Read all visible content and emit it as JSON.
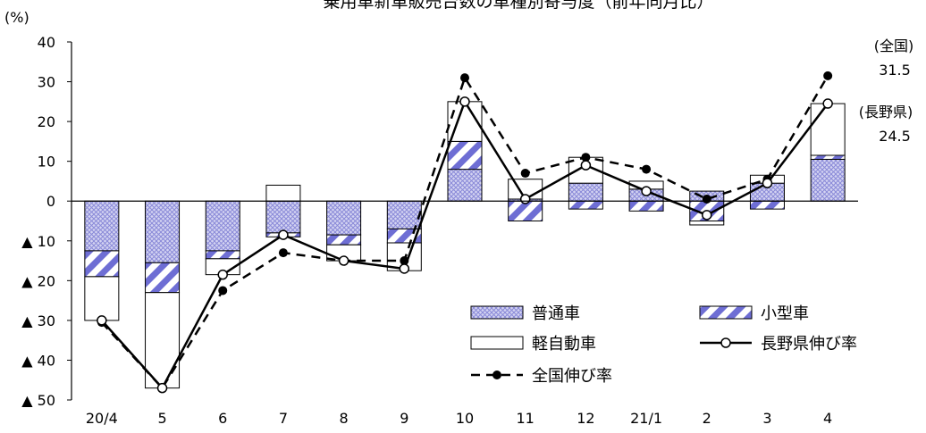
{
  "chart_data": {
    "type": "bar",
    "title": "乗用車新車販売台数の車種別寄与度（前年同月比）",
    "ylabel": "(%)",
    "ylim": [
      -50,
      40
    ],
    "yticks": [
      40,
      30,
      20,
      10,
      0,
      -10,
      -20,
      -30,
      -40,
      -50
    ],
    "ytick_labels": [
      "40",
      "30",
      "20",
      "10",
      "0",
      "▲ 10",
      "▲ 20",
      "▲ 30",
      "▲ 40",
      "▲ 50"
    ],
    "categories": [
      "20/4",
      "5",
      "6",
      "7",
      "8",
      "9",
      "10",
      "11",
      "12",
      "21/1",
      "2",
      "3",
      "4"
    ],
    "series": [
      {
        "name": "普通車",
        "kind": "bar",
        "values": [
          -12.5,
          -15.5,
          -12.5,
          -8,
          -8.5,
          -7,
          8,
          0.5,
          4.5,
          3,
          2.5,
          4.5,
          10.5
        ]
      },
      {
        "name": "小型車",
        "kind": "bar",
        "values": [
          -6.5,
          -7.5,
          -2,
          -1,
          -2.5,
          -3.5,
          7,
          -5,
          -2,
          -2.5,
          -5,
          -2,
          1
        ]
      },
      {
        "name": "軽自動車",
        "kind": "bar",
        "values": [
          -11,
          -24,
          -4,
          4,
          -4,
          -7,
          10,
          5,
          6.5,
          2,
          -1,
          2,
          13
        ]
      },
      {
        "name": "長野県伸び率",
        "kind": "line",
        "values": [
          -30,
          -47,
          -18.5,
          -8.5,
          -15,
          -17,
          25,
          0.5,
          9,
          2.5,
          -3.5,
          4.5,
          24.5
        ]
      },
      {
        "name": "全国伸び率",
        "kind": "line",
        "values": [
          -30.5,
          -47,
          -22.5,
          -13,
          -15,
          -15,
          31,
          7,
          11,
          8,
          0.5,
          5.5,
          31.5
        ]
      }
    ],
    "annotations": [
      {
        "label": "(全国)",
        "value": "31.5"
      },
      {
        "label": "(長野県)",
        "value": "24.5"
      }
    ],
    "legend": "bottom-right",
    "grid": false,
    "colors": {
      "hatch_fill": "#c8c8ee",
      "hatch_line": "#6a6acc",
      "outline": "#000000"
    }
  }
}
